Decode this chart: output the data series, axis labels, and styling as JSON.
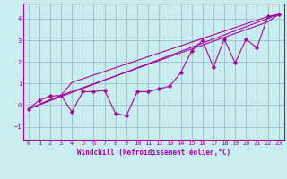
{
  "xlabel": "Windchill (Refroidissement éolien,°C)",
  "bg_color": "#c8eef0",
  "line_color": "#aa00aa",
  "grid_color": "#9dbfcc",
  "xlim": [
    -0.5,
    23.5
  ],
  "ylim": [
    -1.6,
    4.7
  ],
  "xticks": [
    0,
    1,
    2,
    3,
    4,
    5,
    6,
    7,
    8,
    9,
    10,
    11,
    12,
    13,
    14,
    15,
    16,
    17,
    18,
    19,
    20,
    21,
    22,
    23
  ],
  "yticks": [
    -1,
    0,
    1,
    2,
    3,
    4
  ],
  "zigzag_x": [
    0,
    1,
    2,
    3,
    4,
    5,
    6,
    7,
    8,
    9,
    10,
    11,
    12,
    13,
    14,
    15,
    16,
    17,
    18,
    19,
    20,
    21,
    22,
    23
  ],
  "zigzag_y": [
    -0.18,
    0.22,
    0.42,
    0.45,
    -0.32,
    0.62,
    0.62,
    0.68,
    -0.38,
    -0.5,
    0.62,
    0.62,
    0.75,
    0.88,
    1.5,
    2.5,
    3.0,
    1.75,
    3.05,
    1.95,
    3.05,
    2.65,
    4.1,
    4.2
  ],
  "upper_line_x": [
    0,
    3,
    4,
    22,
    23
  ],
  "upper_line_y": [
    -0.18,
    0.45,
    1.05,
    4.1,
    4.2
  ],
  "lower_line_x": [
    0,
    3,
    22,
    23
  ],
  "lower_line_y": [
    -0.18,
    0.45,
    3.85,
    4.2
  ],
  "diag_line_x": [
    0,
    23
  ],
  "diag_line_y": [
    -0.18,
    4.2
  ],
  "xlabel_fontsize": 5.5,
  "tick_fontsize": 5.0,
  "linewidth": 0.8,
  "markersize": 1.8
}
